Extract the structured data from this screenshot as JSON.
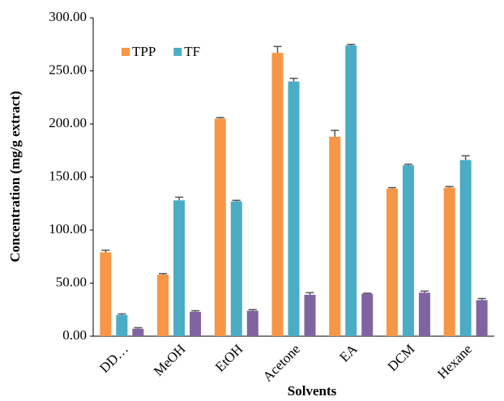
{
  "chart_data": {
    "type": "bar",
    "x_label": "Solvents",
    "y_label": "Concentration (mg/g extract)",
    "categories": [
      "DD…",
      "MeOH",
      "EtOH",
      "Acetone",
      "EA",
      "DCM",
      "Hexane"
    ],
    "series": [
      {
        "name": "TPP",
        "color": "#f79646",
        "values": [
          79,
          58,
          205,
          267,
          188,
          139,
          140
        ],
        "errors": [
          2,
          1,
          1,
          6,
          6,
          1,
          1
        ]
      },
      {
        "name": "TF",
        "color": "#4bacc6",
        "values": [
          20,
          128,
          127,
          240,
          274,
          161,
          166
        ],
        "errors": [
          1,
          3,
          1,
          3,
          1,
          1,
          4
        ]
      },
      {
        "color": "#8064a2",
        "values": [
          7,
          23,
          24,
          39,
          40,
          41,
          34
        ],
        "errors": [
          1,
          1,
          1,
          2,
          0.5,
          1.5,
          1.5
        ]
      }
    ],
    "ylim": [
      0,
      300
    ],
    "yticks": [
      {
        "value": 0,
        "label": "0.00"
      },
      {
        "value": 50,
        "label": "50.00"
      },
      {
        "value": 100,
        "label": "100.00"
      },
      {
        "value": 150,
        "label": "150.00"
      },
      {
        "value": 200,
        "label": "200.00"
      },
      {
        "value": 250,
        "label": "250.00"
      },
      {
        "value": 300,
        "label": "300.00"
      }
    ],
    "legend": "top-left"
  }
}
